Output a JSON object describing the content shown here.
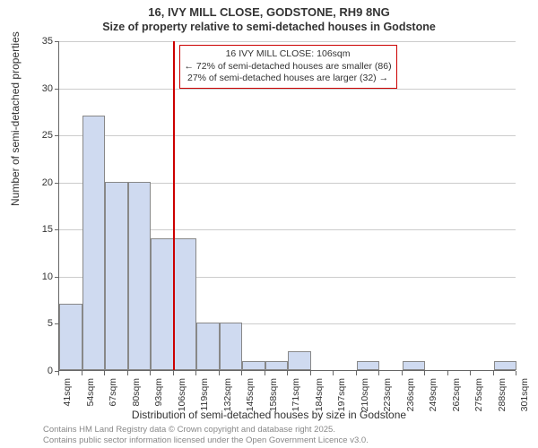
{
  "chart": {
    "type": "histogram",
    "title_main": "16, IVY MILL CLOSE, GODSTONE, RH9 8NG",
    "title_sub": "Size of property relative to semi-detached houses in Godstone",
    "title_fontsize": 13,
    "subtitle_fontsize": 12.5,
    "ylabel": "Number of semi-detached properties",
    "xlabel": "Distribution of semi-detached houses by size in Godstone",
    "label_fontsize": 12,
    "background_color": "#ffffff",
    "grid_color": "#cccccc",
    "axis_color": "#666666",
    "bar_fill": "#cfdaf0",
    "bar_stroke": "#888888",
    "ylim": [
      0,
      35
    ],
    "ytick_step": 5,
    "yticks": [
      0,
      5,
      10,
      15,
      20,
      25,
      30,
      35
    ],
    "xtick_labels": [
      "41sqm",
      "54sqm",
      "67sqm",
      "80sqm",
      "93sqm",
      "106sqm",
      "119sqm",
      "132sqm",
      "145sqm",
      "158sqm",
      "171sqm",
      "184sqm",
      "197sqm",
      "210sqm",
      "223sqm",
      "236sqm",
      "249sqm",
      "262sqm",
      "275sqm",
      "288sqm",
      "301sqm"
    ],
    "bin_edges_sqm": [
      41,
      54,
      67,
      80,
      93,
      106,
      119,
      132,
      145,
      158,
      171,
      184,
      197,
      210,
      223,
      236,
      249,
      262,
      275,
      288,
      301
    ],
    "values": [
      7,
      27,
      20,
      20,
      14,
      14,
      5,
      5,
      1,
      1,
      2,
      0,
      0,
      1,
      0,
      1,
      0,
      0,
      0,
      1
    ],
    "marker_line": {
      "x_sqm": 106,
      "color": "#cc0000",
      "width": 2
    },
    "annotation": {
      "line1": "16 IVY MILL CLOSE: 106sqm",
      "line2": "← 72% of semi-detached houses are smaller (86)",
      "line3": "27% of semi-detached houses are larger (32) →",
      "border_color": "#cc0000",
      "fontsize": 10.5
    },
    "credits": {
      "line1": "Contains HM Land Registry data © Crown copyright and database right 2025.",
      "line2": "Contains public sector information licensed under the Open Government Licence v3.0.",
      "fontsize": 9.5,
      "color": "#888888"
    }
  }
}
